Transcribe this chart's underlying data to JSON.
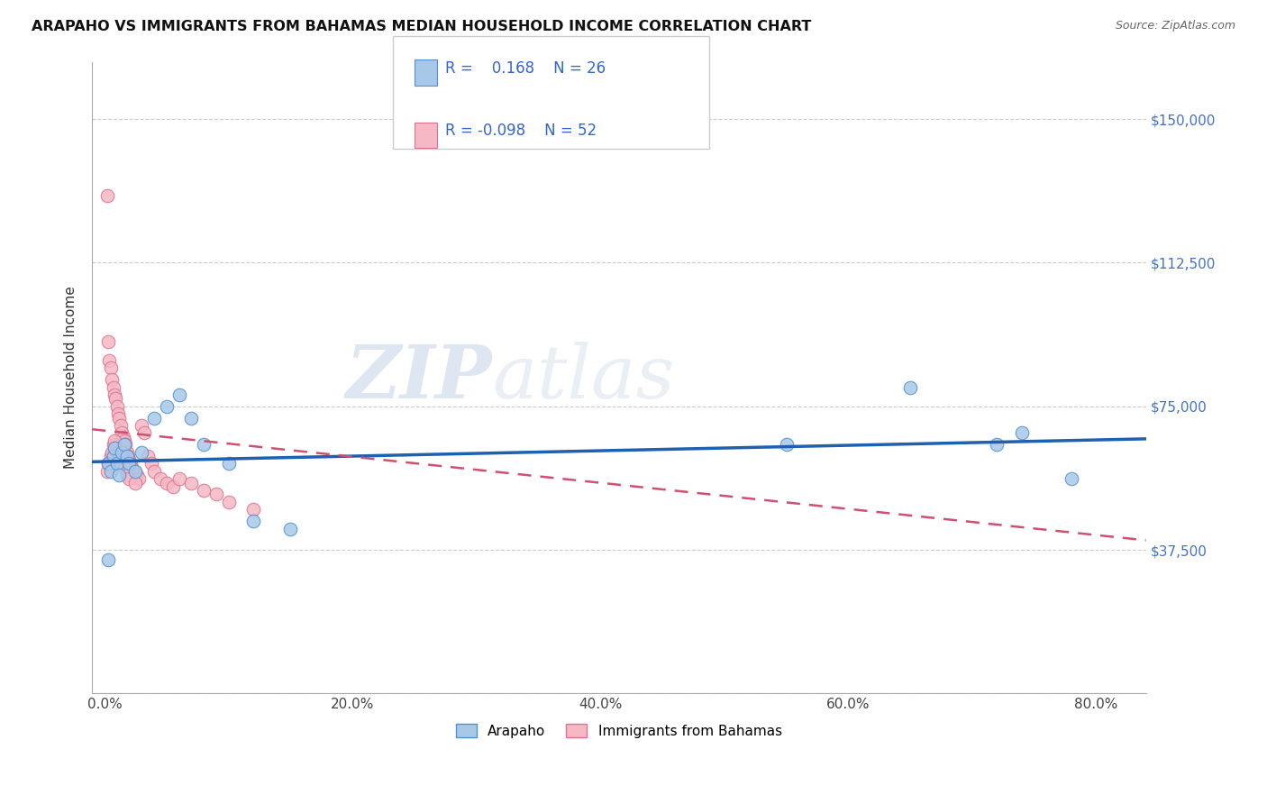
{
  "title": "ARAPAHO VS IMMIGRANTS FROM BAHAMAS MEDIAN HOUSEHOLD INCOME CORRELATION CHART",
  "source": "Source: ZipAtlas.com",
  "xlabel_ticks": [
    "0.0%",
    "",
    "20.0%",
    "",
    "40.0%",
    "",
    "60.0%",
    "",
    "80.0%"
  ],
  "xlabel_values": [
    0.0,
    0.1,
    0.2,
    0.3,
    0.4,
    0.5,
    0.6,
    0.7,
    0.8
  ],
  "ylabel": "Median Household Income",
  "yticks": [
    0,
    37500,
    75000,
    112500,
    150000
  ],
  "ytick_labels": [
    "",
    "$37,500",
    "$75,000",
    "$112,500",
    "$150,000"
  ],
  "ylim": [
    0,
    165000
  ],
  "xlim": [
    -0.01,
    0.84
  ],
  "r_blue": 0.168,
  "n_blue": 26,
  "r_pink": -0.098,
  "n_pink": 52,
  "blue_color": "#a8c8e8",
  "pink_color": "#f5b8c4",
  "blue_edge_color": "#5090d0",
  "pink_edge_color": "#e07090",
  "blue_line_color": "#2060b0",
  "pink_line_color": "#d05070",
  "legend_label_blue": "Arapaho",
  "legend_label_pink": "Immigrants from Bahamas",
  "watermark_zip": "ZIP",
  "watermark_atlas": "atlas",
  "blue_x": [
    0.003,
    0.005,
    0.007,
    0.008,
    0.01,
    0.012,
    0.014,
    0.016,
    0.018,
    0.02,
    0.025,
    0.03,
    0.04,
    0.05,
    0.06,
    0.07,
    0.08,
    0.1,
    0.12,
    0.15,
    0.003,
    0.55,
    0.65,
    0.72,
    0.74,
    0.78
  ],
  "blue_y": [
    60000,
    58000,
    62000,
    64000,
    60000,
    57000,
    63000,
    65000,
    62000,
    60000,
    58000,
    63000,
    72000,
    75000,
    78000,
    72000,
    65000,
    60000,
    45000,
    43000,
    35000,
    65000,
    80000,
    65000,
    68000,
    56000
  ],
  "pink_x": [
    0.002,
    0.003,
    0.004,
    0.005,
    0.006,
    0.007,
    0.008,
    0.009,
    0.01,
    0.011,
    0.012,
    0.013,
    0.014,
    0.015,
    0.016,
    0.017,
    0.018,
    0.019,
    0.02,
    0.021,
    0.022,
    0.024,
    0.026,
    0.028,
    0.03,
    0.032,
    0.035,
    0.038,
    0.04,
    0.045,
    0.05,
    0.055,
    0.06,
    0.07,
    0.08,
    0.09,
    0.1,
    0.12,
    0.002,
    0.003,
    0.005,
    0.006,
    0.007,
    0.008,
    0.009,
    0.01,
    0.012,
    0.014,
    0.016,
    0.018,
    0.02,
    0.025
  ],
  "pink_y": [
    130000,
    92000,
    87000,
    85000,
    82000,
    80000,
    78000,
    77000,
    75000,
    73000,
    72000,
    70000,
    68000,
    67000,
    66000,
    65000,
    63000,
    62000,
    61000,
    60000,
    59000,
    58000,
    57000,
    56000,
    70000,
    68000,
    62000,
    60000,
    58000,
    56000,
    55000,
    54000,
    56000,
    55000,
    53000,
    52000,
    50000,
    48000,
    58000,
    60000,
    62000,
    63000,
    65000,
    66000,
    64000,
    63000,
    62000,
    60000,
    59000,
    57000,
    56000,
    55000
  ],
  "blue_line_x": [
    -0.01,
    0.84
  ],
  "blue_line_y": [
    60500,
    66500
  ],
  "pink_line_x": [
    -0.01,
    0.84
  ],
  "pink_line_y": [
    69000,
    40000
  ]
}
